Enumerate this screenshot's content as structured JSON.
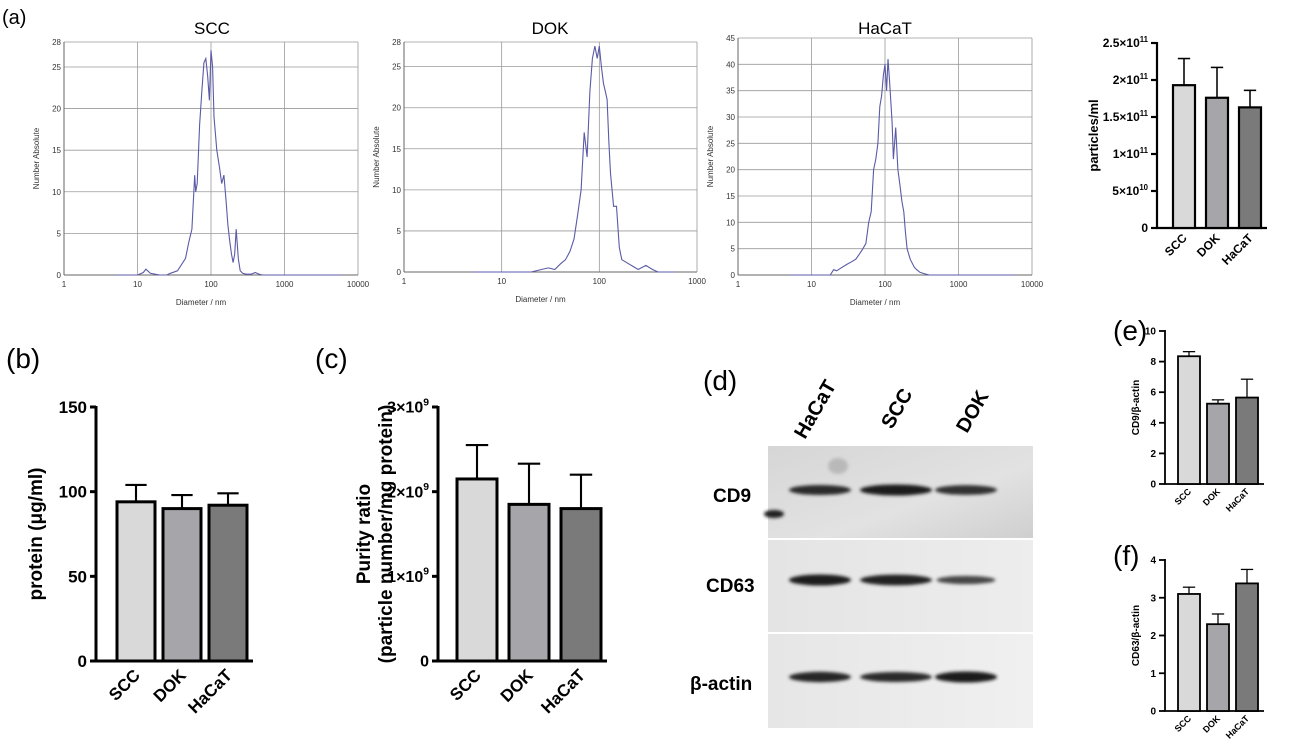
{
  "panel_labels": {
    "a": "(a)",
    "b": "(b)",
    "c": "(c)",
    "d": "(d)",
    "e": "(e)",
    "f": "(f)"
  },
  "chart_data": [
    {
      "id": "nta-scc",
      "type": "line",
      "title": "SCC",
      "xlabel": "Diameter / nm",
      "ylabel": "Number Absolute",
      "x_scale": "log",
      "xlim": [
        1,
        10000
      ],
      "ylim": [
        0,
        28
      ],
      "x_ticks": [
        "1",
        "10",
        "100",
        "1000",
        "10000"
      ],
      "y_ticks": [
        0,
        5,
        10,
        15,
        20,
        25,
        28
      ],
      "x": [
        5,
        10,
        12,
        13,
        15,
        20,
        25,
        28,
        35,
        45,
        50,
        55,
        60,
        62,
        65,
        70,
        75,
        80,
        85,
        90,
        95,
        100,
        105,
        110,
        120,
        130,
        140,
        150,
        160,
        170,
        180,
        190,
        200,
        210,
        220,
        235,
        250,
        270,
        300,
        350,
        400,
        450,
        500,
        700,
        1000,
        2000,
        6000
      ],
      "y": [
        0,
        0,
        0.3,
        0.7,
        0.2,
        0,
        0,
        0.2,
        0.5,
        2,
        4,
        5.5,
        12,
        10,
        11,
        18,
        22,
        25.5,
        26,
        24,
        21,
        27,
        25,
        19,
        15,
        13,
        11,
        12,
        9,
        6,
        4,
        2.5,
        1.5,
        2.5,
        5.5,
        2,
        0.5,
        0.2,
        0.1,
        0.1,
        0.3,
        0.1,
        0,
        0,
        0,
        0,
        0
      ]
    },
    {
      "id": "nta-dok",
      "type": "line",
      "title": "DOK",
      "xlabel": "Diameter / nm",
      "ylabel": "Number Absolute",
      "x_scale": "log",
      "xlim": [
        1,
        1000
      ],
      "ylim": [
        0,
        28
      ],
      "x_ticks": [
        "1",
        "10",
        "100",
        "1000"
      ],
      "y_ticks": [
        0,
        5,
        10,
        15,
        20,
        25,
        28
      ],
      "x": [
        5,
        20,
        30,
        35,
        40,
        45,
        50,
        55,
        60,
        65,
        70,
        75,
        80,
        85,
        90,
        95,
        100,
        105,
        110,
        115,
        120,
        125,
        130,
        140,
        150,
        160,
        170,
        200,
        250,
        300,
        350,
        400,
        600
      ],
      "y": [
        0,
        0,
        0.5,
        0.3,
        1,
        1.5,
        2.5,
        4,
        7,
        10,
        17,
        14,
        22,
        26,
        27.5,
        26,
        27.5,
        25,
        23,
        22,
        21,
        16,
        12,
        8,
        8,
        3,
        1.5,
        1,
        0.3,
        0.8,
        0.3,
        0,
        0
      ]
    },
    {
      "id": "nta-hacat",
      "type": "line",
      "title": "HaCaT",
      "xlabel": "Diameter / nm",
      "ylabel": "Number Absolute",
      "x_scale": "log",
      "xlim": [
        1,
        10000
      ],
      "ylim": [
        0,
        45
      ],
      "x_ticks": [
        "1",
        "10",
        "100",
        "1000",
        "10000"
      ],
      "y_ticks": [
        0,
        5,
        10,
        15,
        20,
        25,
        30,
        35,
        40,
        45
      ],
      "x": [
        5,
        18,
        20,
        22,
        25,
        30,
        35,
        40,
        45,
        50,
        55,
        60,
        65,
        70,
        75,
        80,
        85,
        90,
        95,
        100,
        105,
        110,
        115,
        120,
        125,
        130,
        140,
        150,
        160,
        170,
        180,
        190,
        200,
        220,
        250,
        270,
        300,
        350,
        400,
        1000,
        6000
      ],
      "y": [
        0,
        0,
        1,
        0.8,
        1.3,
        2,
        2.5,
        3,
        4,
        5,
        6,
        10,
        12,
        20,
        22,
        25,
        32,
        34,
        38,
        40,
        35,
        41,
        37,
        33,
        29,
        22,
        28,
        20,
        17,
        14,
        12,
        8,
        5,
        3,
        1.5,
        1,
        0.5,
        0.2,
        0,
        0,
        0
      ]
    },
    {
      "id": "bar-particles",
      "type": "bar",
      "title": "",
      "categories": [
        "SCC",
        "DOK",
        "HaCaT"
      ],
      "values": [
        193000000000.0,
        176000000000.0,
        163000000000.0
      ],
      "errors": [
        36000000000.0,
        41000000000.0,
        23000000000.0
      ],
      "ylabel": "particles/ml",
      "xlabel": "",
      "ylim": [
        0,
        250000000000.0
      ],
      "y_ticks": [
        {
          "value": 0,
          "base": "0",
          "exp": ""
        },
        {
          "value": 50000000000.0,
          "base": "5×10",
          "exp": "10"
        },
        {
          "value": 100000000000.0,
          "base": "1×10",
          "exp": "11"
        },
        {
          "value": 150000000000.0,
          "base": "1.5×10",
          "exp": "11"
        },
        {
          "value": 200000000000.0,
          "base": "2×10",
          "exp": "11"
        },
        {
          "value": 250000000000.0,
          "base": "2.5×10",
          "exp": "11"
        }
      ],
      "colors": [
        "#d9d9d9",
        "#a6a6aa",
        "#7a7a7a"
      ]
    },
    {
      "id": "bar-protein",
      "type": "bar",
      "title": "",
      "categories": [
        "SCC",
        "DOK",
        "HaCaT"
      ],
      "values": [
        94,
        90,
        92
      ],
      "errors": [
        10,
        8,
        7
      ],
      "ylabel": "protein (μg/ml)",
      "xlabel": "",
      "ylim": [
        0,
        150
      ],
      "y_ticks": [
        {
          "value": 0,
          "base": "0",
          "exp": ""
        },
        {
          "value": 50,
          "base": "50",
          "exp": ""
        },
        {
          "value": 100,
          "base": "100",
          "exp": ""
        },
        {
          "value": 150,
          "base": "150",
          "exp": ""
        }
      ],
      "colors": [
        "#d9d9d9",
        "#a6a6aa",
        "#7a7a7a"
      ]
    },
    {
      "id": "bar-purity",
      "type": "bar",
      "title": "",
      "categories": [
        "SCC",
        "DOK",
        "HaCaT"
      ],
      "values": [
        2150000000.0,
        1850000000.0,
        1800000000.0
      ],
      "errors": [
        400000000.0,
        480000000.0,
        400000000.0
      ],
      "ylabel": "Purity ratio",
      "ylabel2": "(particle number/mg protein)",
      "xlabel": "",
      "ylim": [
        0,
        3000000000.0
      ],
      "y_ticks": [
        {
          "value": 0,
          "base": "0",
          "exp": ""
        },
        {
          "value": 1000000000.0,
          "base": "1×10",
          "exp": "9"
        },
        {
          "value": 2000000000.0,
          "base": "2×10",
          "exp": "9"
        },
        {
          "value": 3000000000.0,
          "base": "3×10",
          "exp": "9"
        }
      ],
      "colors": [
        "#d9d9d9",
        "#a6a6aa",
        "#7a7a7a"
      ]
    },
    {
      "id": "bar-cd9",
      "type": "bar",
      "title": "",
      "categories": [
        "SCC",
        "DOK",
        "HaCaT"
      ],
      "values": [
        8.35,
        5.25,
        5.65
      ],
      "errors": [
        0.3,
        0.25,
        1.2
      ],
      "ylabel": "CD9/β-actin",
      "xlabel": "",
      "ylim": [
        0,
        10
      ],
      "y_ticks": [
        {
          "value": 0,
          "base": "0",
          "exp": ""
        },
        {
          "value": 2,
          "base": "2",
          "exp": ""
        },
        {
          "value": 4,
          "base": "4",
          "exp": ""
        },
        {
          "value": 6,
          "base": "6",
          "exp": ""
        },
        {
          "value": 8,
          "base": "8",
          "exp": ""
        },
        {
          "value": 10,
          "base": "10",
          "exp": ""
        }
      ],
      "colors": [
        "#d9d9d9",
        "#a6a6aa",
        "#7a7a7a"
      ]
    },
    {
      "id": "bar-cd63",
      "type": "bar",
      "title": "",
      "categories": [
        "SCC",
        "DOK",
        "HaCaT"
      ],
      "values": [
        3.1,
        2.3,
        3.38
      ],
      "errors": [
        0.18,
        0.27,
        0.37
      ],
      "ylabel": "CD63/β-actin",
      "xlabel": "",
      "ylim": [
        0,
        4
      ],
      "y_ticks": [
        {
          "value": 0,
          "base": "0",
          "exp": ""
        },
        {
          "value": 1,
          "base": "1",
          "exp": ""
        },
        {
          "value": 2,
          "base": "2",
          "exp": ""
        },
        {
          "value": 3,
          "base": "3",
          "exp": ""
        },
        {
          "value": 4,
          "base": "4",
          "exp": ""
        }
      ],
      "colors": [
        "#d9d9d9",
        "#a6a6aa",
        "#7a7a7a"
      ]
    }
  ],
  "western_blot": {
    "lanes": [
      "HaCaT",
      "SCC",
      "DOK"
    ],
    "bands": [
      "CD9",
      "CD63",
      "β-actin"
    ],
    "band_intensity": {
      "CD9": [
        0.85,
        1.0,
        0.8
      ],
      "CD63": [
        1.0,
        0.95,
        0.55
      ],
      "β-actin": [
        0.9,
        0.85,
        1.0
      ]
    }
  },
  "colors": {
    "nta_line": "#5a5aa8",
    "nta_grid": "#9a9a9a",
    "bar_outline": "#000000"
  }
}
